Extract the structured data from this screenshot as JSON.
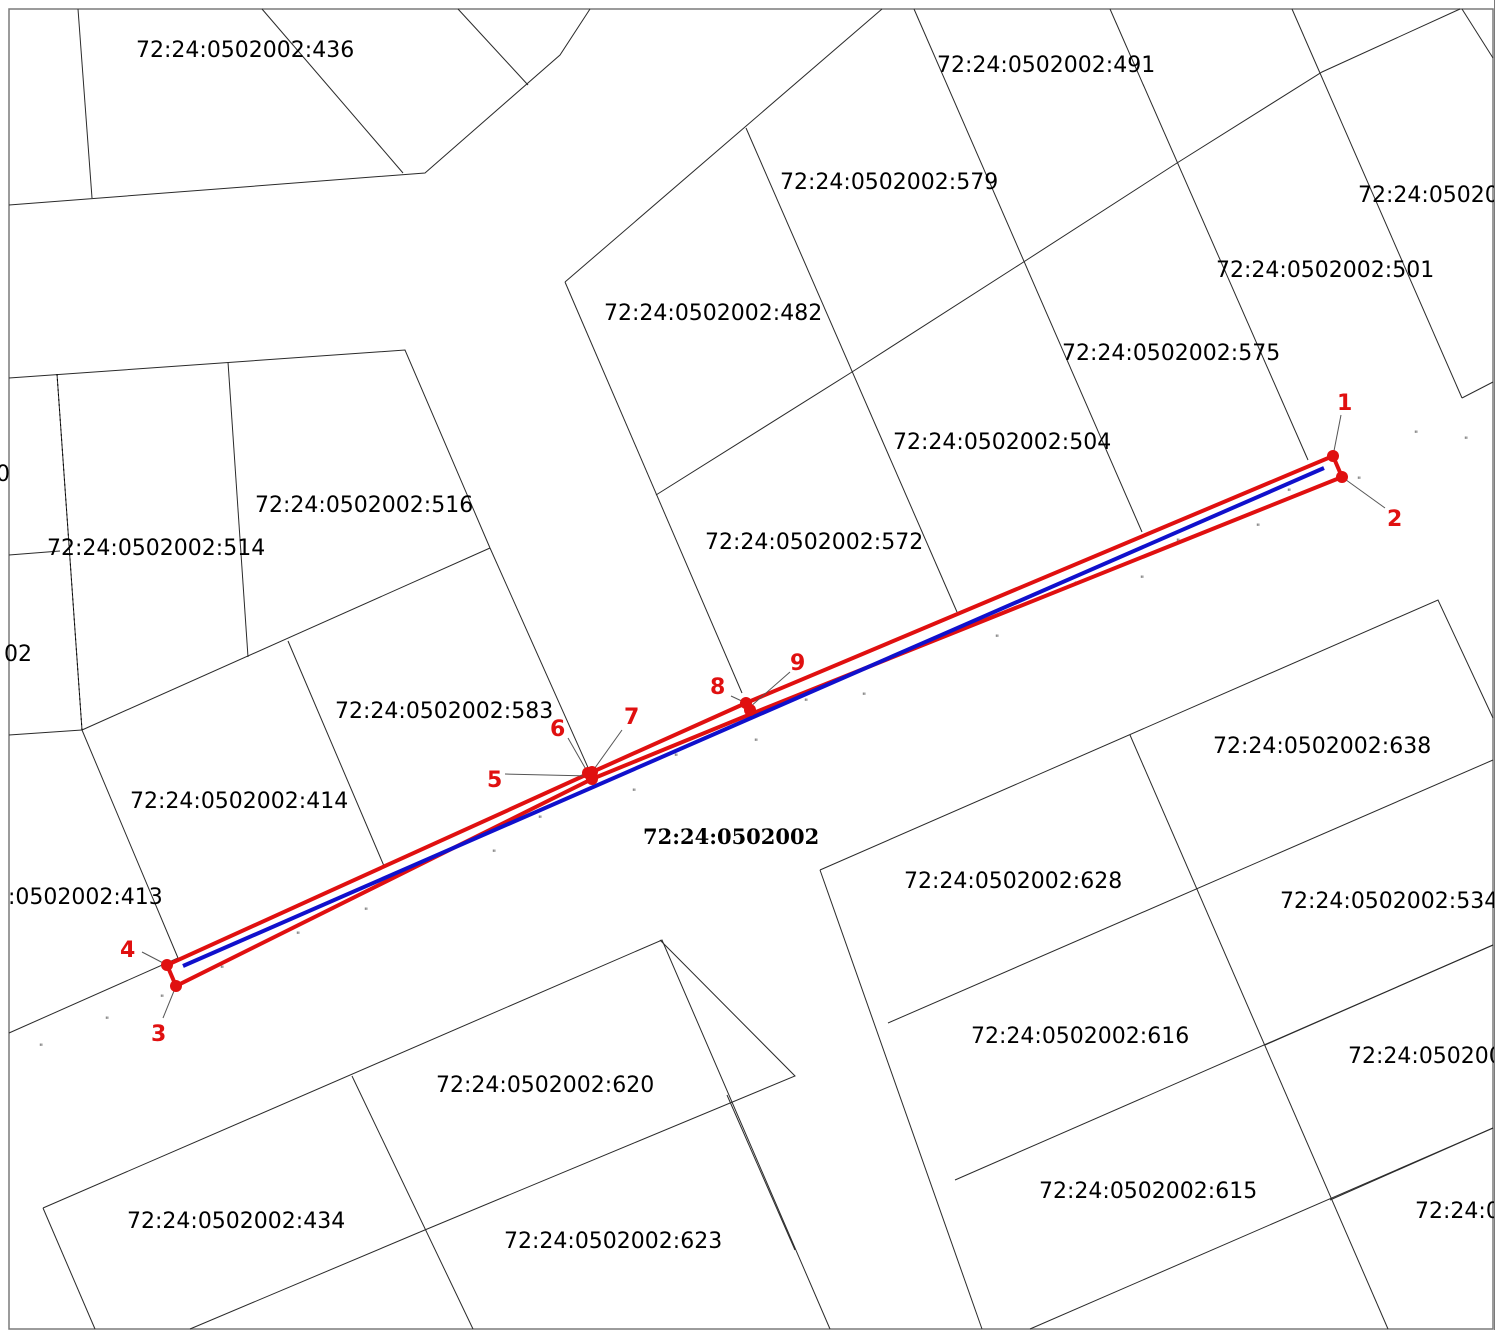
{
  "map": {
    "quarter_label": "72:24:0502002",
    "colors": {
      "parcel_border": "#2a2a2a",
      "zone_outline": "#e01010",
      "centerline": "#1010cc",
      "point_marker": "#e01010",
      "point_label": "#e01010",
      "frame": "#7a7a7a"
    },
    "parcel_labels": [
      "72:24:0502002:436",
      "72:24:0502002:491",
      "72:24:0502002:579",
      "72:24:050200",
      "72:24:0502002:501",
      "72:24:0502002:482",
      "72:24:0502002:575",
      "72:24:0502002:504",
      "72:24:0502002:516",
      "72:24:0502002:514",
      "02",
      "0",
      "72:24:0502002:572",
      "72:24:0502002:583",
      "72:24:0502002:638",
      "72:24:0502002:414",
      ":0502002:413",
      "72:24:0502002:628",
      "72:24:0502002:534",
      "72:24:0502002:616",
      "72:24:050200",
      "72:24:0502002:620",
      "72:24:0502002:615",
      "72:24:0502002:434",
      "72:24:0502002:623",
      "72:24:0"
    ],
    "points": [
      "1",
      "2",
      "3",
      "4",
      "5",
      "6",
      "7",
      "8",
      "9"
    ]
  }
}
